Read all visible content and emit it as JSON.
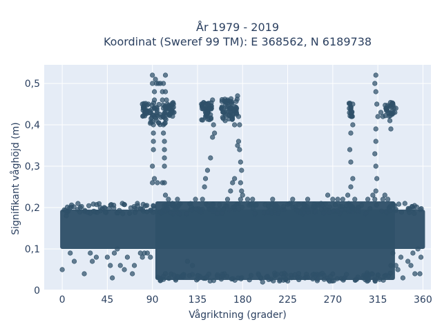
{
  "chart_data": {
    "type": "scatter",
    "title": "År 1979 - 2019",
    "subtitle": "Koordinat (Sweref 99 TM): E 368562, N 6189738",
    "xlabel": "Vågriktning (grader)",
    "ylabel": "Signifikant våghöjd (m)",
    "xlim": [
      -18,
      368
    ],
    "ylim": [
      0,
      0.545
    ],
    "xticks": [
      0,
      45,
      90,
      135,
      180,
      225,
      270,
      315,
      360
    ],
    "xtick_labels": [
      "0",
      "45",
      "90",
      "135",
      "180",
      "225",
      "270",
      "315",
      "360"
    ],
    "yticks": [
      0,
      0.1,
      0.2,
      0.3,
      0.4,
      0.5
    ],
    "ytick_labels": [
      "0",
      "0,1",
      "0,2",
      "0,3",
      "0,4",
      "0,5"
    ],
    "grid": true,
    "background": "#e5ecf6",
    "marker_color": "#2f5169",
    "bands": [
      {
        "x0": 0,
        "x1": 360,
        "y0": 0.105,
        "y1": 0.19
      },
      {
        "x0": 95,
        "x1": 330,
        "y0": 0.03,
        "y1": 0.21
      }
    ],
    "points": [
      {
        "x": 0,
        "y": 0.05
      },
      {
        "x": 4,
        "y": 0.18
      },
      {
        "x": 8,
        "y": 0.09
      },
      {
        "x": 12,
        "y": 0.07
      },
      {
        "x": 18,
        "y": 0.2
      },
      {
        "x": 22,
        "y": 0.04
      },
      {
        "x": 28,
        "y": 0.09
      },
      {
        "x": 30,
        "y": 0.07
      },
      {
        "x": 34,
        "y": 0.08
      },
      {
        "x": 38,
        "y": 0.2
      },
      {
        "x": 42,
        "y": 0.2
      },
      {
        "x": 45,
        "y": 0.08
      },
      {
        "x": 48,
        "y": 0.06
      },
      {
        "x": 50,
        "y": 0.03
      },
      {
        "x": 52,
        "y": 0.09
      },
      {
        "x": 55,
        "y": 0.1
      },
      {
        "x": 58,
        "y": 0.06
      },
      {
        "x": 60,
        "y": 0.21
      },
      {
        "x": 62,
        "y": 0.05
      },
      {
        "x": 65,
        "y": 0.08
      },
      {
        "x": 70,
        "y": 0.04
      },
      {
        "x": 72,
        "y": 0.06
      },
      {
        "x": 75,
        "y": 0.21
      },
      {
        "x": 78,
        "y": 0.09
      },
      {
        "x": 80,
        "y": 0.08
      },
      {
        "x": 82,
        "y": 0.09
      },
      {
        "x": 85,
        "y": 0.09
      },
      {
        "x": 88,
        "y": 0.08
      },
      {
        "x": 90,
        "y": 0.26
      },
      {
        "x": 92,
        "y": 0.27
      },
      {
        "x": 95,
        "y": 0.26
      },
      {
        "x": 100,
        "y": 0.26
      },
      {
        "x": 102,
        "y": 0.26
      },
      {
        "x": 103,
        "y": 0.23
      },
      {
        "x": 106,
        "y": 0.22
      },
      {
        "x": 110,
        "y": 0.21
      },
      {
        "x": 115,
        "y": 0.22
      },
      {
        "x": 125,
        "y": 0.07
      },
      {
        "x": 130,
        "y": 0.06
      },
      {
        "x": 133,
        "y": 0.22
      },
      {
        "x": 140,
        "y": 0.22
      },
      {
        "x": 142,
        "y": 0.25
      },
      {
        "x": 143,
        "y": 0.27
      },
      {
        "x": 145,
        "y": 0.29
      },
      {
        "x": 148,
        "y": 0.32
      },
      {
        "x": 150,
        "y": 0.37
      },
      {
        "x": 152,
        "y": 0.38
      },
      {
        "x": 165,
        "y": 0.22
      },
      {
        "x": 168,
        "y": 0.24
      },
      {
        "x": 170,
        "y": 0.26
      },
      {
        "x": 172,
        "y": 0.27
      },
      {
        "x": 175,
        "y": 0.35
      },
      {
        "x": 178,
        "y": 0.22
      },
      {
        "x": 180,
        "y": 0.23
      },
      {
        "x": 185,
        "y": 0.22
      },
      {
        "x": 190,
        "y": 0.22
      },
      {
        "x": 200,
        "y": 0.02
      },
      {
        "x": 210,
        "y": 0.22
      },
      {
        "x": 230,
        "y": 0.22
      },
      {
        "x": 245,
        "y": 0.22
      },
      {
        "x": 265,
        "y": 0.23
      },
      {
        "x": 270,
        "y": 0.22
      },
      {
        "x": 275,
        "y": 0.22
      },
      {
        "x": 280,
        "y": 0.22
      },
      {
        "x": 285,
        "y": 0.23
      },
      {
        "x": 288,
        "y": 0.25
      },
      {
        "x": 290,
        "y": 0.27
      },
      {
        "x": 292,
        "y": 0.22
      },
      {
        "x": 300,
        "y": 0.03
      },
      {
        "x": 305,
        "y": 0.22
      },
      {
        "x": 310,
        "y": 0.23
      },
      {
        "x": 312,
        "y": 0.22
      },
      {
        "x": 320,
        "y": 0.22
      },
      {
        "x": 322,
        "y": 0.23
      },
      {
        "x": 325,
        "y": 0.22
      },
      {
        "x": 328,
        "y": 0.06
      },
      {
        "x": 330,
        "y": 0.09
      },
      {
        "x": 333,
        "y": 0.06
      },
      {
        "x": 335,
        "y": 0.05
      },
      {
        "x": 338,
        "y": 0.08
      },
      {
        "x": 340,
        "y": 0.03
      },
      {
        "x": 342,
        "y": 0.21
      },
      {
        "x": 345,
        "y": 0.07
      },
      {
        "x": 348,
        "y": 0.06
      },
      {
        "x": 350,
        "y": 0.09
      },
      {
        "x": 352,
        "y": 0.04
      },
      {
        "x": 355,
        "y": 0.1
      },
      {
        "x": 357,
        "y": 0.04
      },
      {
        "x": 358,
        "y": 0.08
      },
      {
        "x": 91,
        "y": 0.34
      },
      {
        "x": 91,
        "y": 0.36
      },
      {
        "x": 91,
        "y": 0.38
      },
      {
        "x": 91,
        "y": 0.4
      },
      {
        "x": 92,
        "y": 0.42
      },
      {
        "x": 92,
        "y": 0.44
      },
      {
        "x": 92,
        "y": 0.46
      },
      {
        "x": 92,
        "y": 0.48
      },
      {
        "x": 90,
        "y": 0.5
      },
      {
        "x": 90,
        "y": 0.52
      },
      {
        "x": 93,
        "y": 0.51
      },
      {
        "x": 94,
        "y": 0.5
      },
      {
        "x": 96,
        "y": 0.5
      },
      {
        "x": 98,
        "y": 0.5
      },
      {
        "x": 90,
        "y": 0.3
      },
      {
        "x": 102,
        "y": 0.3
      },
      {
        "x": 102,
        "y": 0.32
      },
      {
        "x": 102,
        "y": 0.34
      },
      {
        "x": 102,
        "y": 0.36
      },
      {
        "x": 101,
        "y": 0.38
      },
      {
        "x": 101,
        "y": 0.4
      },
      {
        "x": 101,
        "y": 0.42
      },
      {
        "x": 101,
        "y": 0.44
      },
      {
        "x": 100,
        "y": 0.46
      },
      {
        "x": 100,
        "y": 0.48
      },
      {
        "x": 101,
        "y": 0.5
      },
      {
        "x": 103,
        "y": 0.52
      },
      {
        "x": 103,
        "y": 0.48
      },
      {
        "x": 104,
        "y": 0.46
      },
      {
        "x": 104,
        "y": 0.44
      },
      {
        "x": 80,
        "y": 0.45
      },
      {
        "x": 82,
        "y": 0.44
      },
      {
        "x": 84,
        "y": 0.43
      },
      {
        "x": 86,
        "y": 0.45
      },
      {
        "x": 105,
        "y": 0.45
      },
      {
        "x": 107,
        "y": 0.44
      },
      {
        "x": 109,
        "y": 0.43
      },
      {
        "x": 111,
        "y": 0.45
      },
      {
        "x": 139,
        "y": 0.45
      },
      {
        "x": 141,
        "y": 0.44
      },
      {
        "x": 143,
        "y": 0.43
      },
      {
        "x": 145,
        "y": 0.45
      },
      {
        "x": 147,
        "y": 0.44
      },
      {
        "x": 149,
        "y": 0.44
      },
      {
        "x": 150,
        "y": 0.46
      },
      {
        "x": 151,
        "y": 0.4
      },
      {
        "x": 159,
        "y": 0.44
      },
      {
        "x": 161,
        "y": 0.43
      },
      {
        "x": 163,
        "y": 0.45
      },
      {
        "x": 165,
        "y": 0.46
      },
      {
        "x": 167,
        "y": 0.44
      },
      {
        "x": 168,
        "y": 0.43
      },
      {
        "x": 170,
        "y": 0.42
      },
      {
        "x": 172,
        "y": 0.4
      },
      {
        "x": 174,
        "y": 0.44
      },
      {
        "x": 175,
        "y": 0.47
      },
      {
        "x": 176,
        "y": 0.42
      },
      {
        "x": 177,
        "y": 0.4
      },
      {
        "x": 176,
        "y": 0.36
      },
      {
        "x": 177,
        "y": 0.34
      },
      {
        "x": 178,
        "y": 0.31
      },
      {
        "x": 179,
        "y": 0.29
      },
      {
        "x": 178,
        "y": 0.26
      },
      {
        "x": 179,
        "y": 0.24
      },
      {
        "x": 287,
        "y": 0.45
      },
      {
        "x": 288,
        "y": 0.44
      },
      {
        "x": 289,
        "y": 0.42
      },
      {
        "x": 290,
        "y": 0.4
      },
      {
        "x": 288,
        "y": 0.38
      },
      {
        "x": 287,
        "y": 0.34
      },
      {
        "x": 288,
        "y": 0.31
      },
      {
        "x": 290,
        "y": 0.45
      },
      {
        "x": 312,
        "y": 0.5
      },
      {
        "x": 313,
        "y": 0.52
      },
      {
        "x": 313,
        "y": 0.48
      },
      {
        "x": 314,
        "y": 0.45
      },
      {
        "x": 315,
        "y": 0.42
      },
      {
        "x": 313,
        "y": 0.39
      },
      {
        "x": 313,
        "y": 0.36
      },
      {
        "x": 312,
        "y": 0.33
      },
      {
        "x": 313,
        "y": 0.3
      },
      {
        "x": 314,
        "y": 0.27
      },
      {
        "x": 313,
        "y": 0.24
      },
      {
        "x": 318,
        "y": 0.43
      },
      {
        "x": 320,
        "y": 0.42
      },
      {
        "x": 323,
        "y": 0.44
      },
      {
        "x": 325,
        "y": 0.43
      },
      {
        "x": 327,
        "y": 0.41
      },
      {
        "x": 328,
        "y": 0.39
      },
      {
        "x": 330,
        "y": 0.45
      },
      {
        "x": 331,
        "y": 0.44
      },
      {
        "x": 332,
        "y": 0.43
      },
      {
        "x": 333,
        "y": 0.44
      }
    ],
    "clusters": [
      {
        "x0": 80,
        "x1": 85,
        "y0": 0.42,
        "y1": 0.455,
        "n": 22
      },
      {
        "x0": 106,
        "x1": 112,
        "y0": 0.42,
        "y1": 0.455,
        "n": 22
      },
      {
        "x0": 139,
        "x1": 149,
        "y0": 0.41,
        "y1": 0.455,
        "n": 40
      },
      {
        "x0": 159,
        "x1": 175,
        "y0": 0.41,
        "y1": 0.465,
        "n": 55
      },
      {
        "x0": 87,
        "x1": 104,
        "y0": 0.4,
        "y1": 0.455,
        "n": 45
      },
      {
        "x0": 286,
        "x1": 290,
        "y0": 0.42,
        "y1": 0.455,
        "n": 14
      },
      {
        "x0": 322,
        "x1": 331,
        "y0": 0.42,
        "y1": 0.455,
        "n": 22
      }
    ]
  }
}
